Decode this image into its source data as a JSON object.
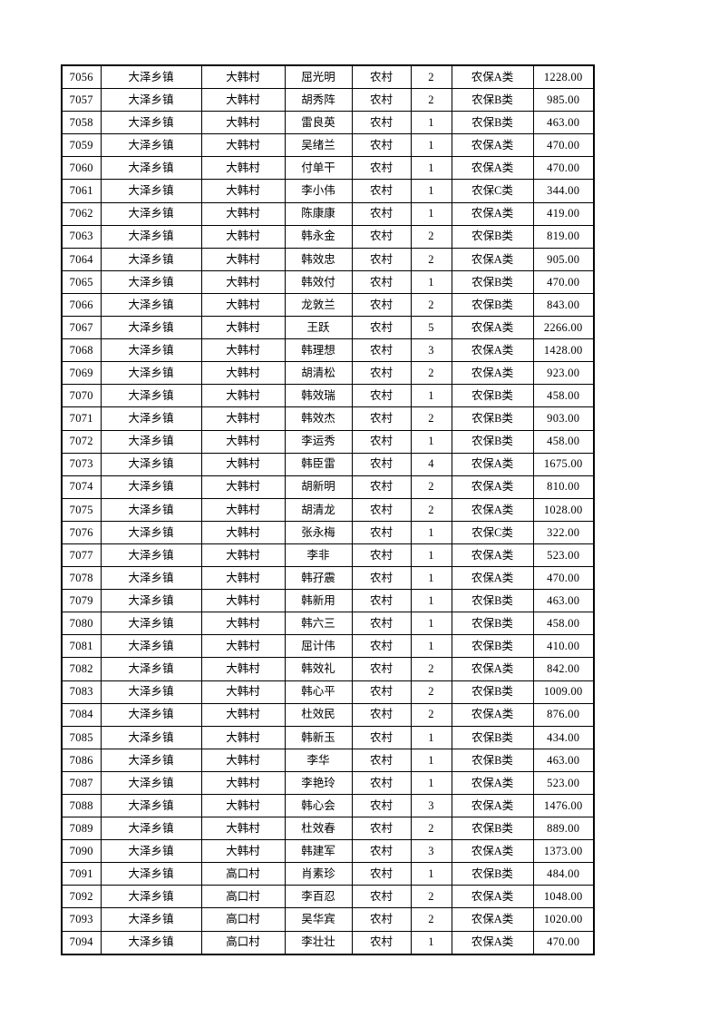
{
  "colors": {
    "page_background": "#ffffff",
    "grid_line": "#000000",
    "text": "#000000"
  },
  "table": {
    "rows": [
      [
        "7056",
        "大泽乡镇",
        "大韩村",
        "屈光明",
        "农村",
        "2",
        "农保A类",
        "1228.00"
      ],
      [
        "7057",
        "大泽乡镇",
        "大韩村",
        "胡秀阵",
        "农村",
        "2",
        "农保B类",
        "985.00"
      ],
      [
        "7058",
        "大泽乡镇",
        "大韩村",
        "雷良英",
        "农村",
        "1",
        "农保B类",
        "463.00"
      ],
      [
        "7059",
        "大泽乡镇",
        "大韩村",
        "吴绪兰",
        "农村",
        "1",
        "农保A类",
        "470.00"
      ],
      [
        "7060",
        "大泽乡镇",
        "大韩村",
        "付单干",
        "农村",
        "1",
        "农保A类",
        "470.00"
      ],
      [
        "7061",
        "大泽乡镇",
        "大韩村",
        "李小伟",
        "农村",
        "1",
        "农保C类",
        "344.00"
      ],
      [
        "7062",
        "大泽乡镇",
        "大韩村",
        "陈康康",
        "农村",
        "1",
        "农保A类",
        "419.00"
      ],
      [
        "7063",
        "大泽乡镇",
        "大韩村",
        "韩永金",
        "农村",
        "2",
        "农保B类",
        "819.00"
      ],
      [
        "7064",
        "大泽乡镇",
        "大韩村",
        "韩效忠",
        "农村",
        "2",
        "农保A类",
        "905.00"
      ],
      [
        "7065",
        "大泽乡镇",
        "大韩村",
        "韩效付",
        "农村",
        "1",
        "农保B类",
        "470.00"
      ],
      [
        "7066",
        "大泽乡镇",
        "大韩村",
        "龙敦兰",
        "农村",
        "2",
        "农保B类",
        "843.00"
      ],
      [
        "7067",
        "大泽乡镇",
        "大韩村",
        "王跃",
        "农村",
        "5",
        "农保A类",
        "2266.00"
      ],
      [
        "7068",
        "大泽乡镇",
        "大韩村",
        "韩理想",
        "农村",
        "3",
        "农保A类",
        "1428.00"
      ],
      [
        "7069",
        "大泽乡镇",
        "大韩村",
        "胡清松",
        "农村",
        "2",
        "农保A类",
        "923.00"
      ],
      [
        "7070",
        "大泽乡镇",
        "大韩村",
        "韩效瑞",
        "农村",
        "1",
        "农保B类",
        "458.00"
      ],
      [
        "7071",
        "大泽乡镇",
        "大韩村",
        "韩效杰",
        "农村",
        "2",
        "农保B类",
        "903.00"
      ],
      [
        "7072",
        "大泽乡镇",
        "大韩村",
        "李运秀",
        "农村",
        "1",
        "农保B类",
        "458.00"
      ],
      [
        "7073",
        "大泽乡镇",
        "大韩村",
        "韩臣雷",
        "农村",
        "4",
        "农保A类",
        "1675.00"
      ],
      [
        "7074",
        "大泽乡镇",
        "大韩村",
        "胡新明",
        "农村",
        "2",
        "农保A类",
        "810.00"
      ],
      [
        "7075",
        "大泽乡镇",
        "大韩村",
        "胡清龙",
        "农村",
        "2",
        "农保A类",
        "1028.00"
      ],
      [
        "7076",
        "大泽乡镇",
        "大韩村",
        "张永梅",
        "农村",
        "1",
        "农保C类",
        "322.00"
      ],
      [
        "7077",
        "大泽乡镇",
        "大韩村",
        "李非",
        "农村",
        "1",
        "农保A类",
        "523.00"
      ],
      [
        "7078",
        "大泽乡镇",
        "大韩村",
        "韩孖震",
        "农村",
        "1",
        "农保A类",
        "470.00"
      ],
      [
        "7079",
        "大泽乡镇",
        "大韩村",
        "韩新用",
        "农村",
        "1",
        "农保B类",
        "463.00"
      ],
      [
        "7080",
        "大泽乡镇",
        "大韩村",
        "韩六三",
        "农村",
        "1",
        "农保B类",
        "458.00"
      ],
      [
        "7081",
        "大泽乡镇",
        "大韩村",
        "屈计伟",
        "农村",
        "1",
        "农保B类",
        "410.00"
      ],
      [
        "7082",
        "大泽乡镇",
        "大韩村",
        "韩效礼",
        "农村",
        "2",
        "农保A类",
        "842.00"
      ],
      [
        "7083",
        "大泽乡镇",
        "大韩村",
        "韩心平",
        "农村",
        "2",
        "农保B类",
        "1009.00"
      ],
      [
        "7084",
        "大泽乡镇",
        "大韩村",
        "杜效民",
        "农村",
        "2",
        "农保A类",
        "876.00"
      ],
      [
        "7085",
        "大泽乡镇",
        "大韩村",
        "韩新玉",
        "农村",
        "1",
        "农保B类",
        "434.00"
      ],
      [
        "7086",
        "大泽乡镇",
        "大韩村",
        "李华",
        "农村",
        "1",
        "农保B类",
        "463.00"
      ],
      [
        "7087",
        "大泽乡镇",
        "大韩村",
        "李艳玲",
        "农村",
        "1",
        "农保A类",
        "523.00"
      ],
      [
        "7088",
        "大泽乡镇",
        "大韩村",
        "韩心会",
        "农村",
        "3",
        "农保A类",
        "1476.00"
      ],
      [
        "7089",
        "大泽乡镇",
        "大韩村",
        "杜效春",
        "农村",
        "2",
        "农保B类",
        "889.00"
      ],
      [
        "7090",
        "大泽乡镇",
        "大韩村",
        "韩建军",
        "农村",
        "3",
        "农保A类",
        "1373.00"
      ],
      [
        "7091",
        "大泽乡镇",
        "高口村",
        "肖素珍",
        "农村",
        "1",
        "农保B类",
        "484.00"
      ],
      [
        "7092",
        "大泽乡镇",
        "高口村",
        "李百忍",
        "农村",
        "2",
        "农保A类",
        "1048.00"
      ],
      [
        "7093",
        "大泽乡镇",
        "高口村",
        "吴华宾",
        "农村",
        "2",
        "农保A类",
        "1020.00"
      ],
      [
        "7094",
        "大泽乡镇",
        "高口村",
        "李壮壮",
        "农村",
        "1",
        "农保A类",
        "470.00"
      ]
    ]
  }
}
